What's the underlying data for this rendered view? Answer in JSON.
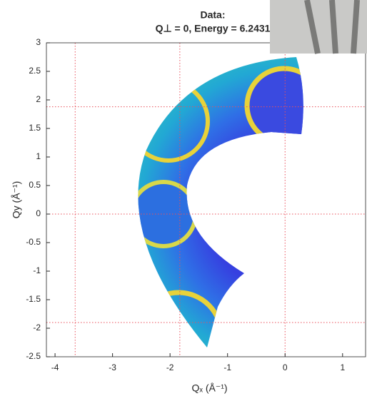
{
  "chart_data": {
    "type": "image",
    "title": [
      "Data:",
      "Q⊥ = 0, Energy = 6.2431"
    ],
    "xlabel": "Qₓ (Å⁻¹)",
    "ylabel": "Qy (Å⁻¹)",
    "xlim": [
      -4.15,
      1.4
    ],
    "ylim": [
      -2.5,
      3
    ],
    "xticks": [
      -4,
      -3,
      -2,
      -1,
      0,
      1
    ],
    "yticks": [
      -2.5,
      -2,
      -1.5,
      -1,
      -0.5,
      0,
      0.5,
      1,
      1.5,
      2,
      2.5,
      3
    ],
    "ref_x": [
      -3.65,
      -1.83,
      0
    ],
    "ref_y": [
      1.88,
      0,
      -1.9
    ],
    "ref_color": "#e8505b"
  }
}
